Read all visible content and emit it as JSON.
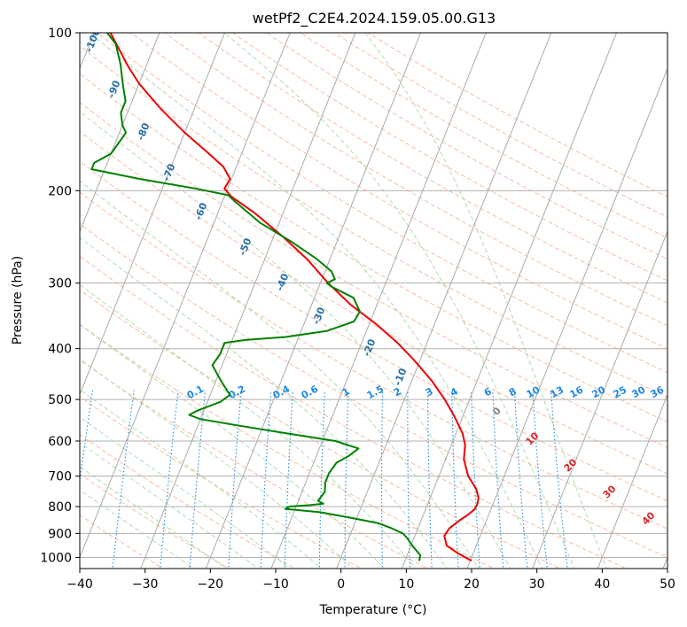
{
  "chart_data": {
    "type": "line",
    "subtype": "skew-t log-p diagram",
    "title": "wetPf2_C2E4.2024.159.05.00.G13",
    "xlabel": "Temperature (°C)",
    "ylabel": "Pressure (hPa)",
    "xlim": [
      -40,
      50
    ],
    "ylim": [
      1050,
      100
    ],
    "y_scale": "log",
    "x_ticks": [
      -40,
      -30,
      -20,
      -10,
      0,
      10,
      20,
      30,
      40,
      50
    ],
    "y_ticks": [
      100,
      200,
      300,
      400,
      500,
      600,
      700,
      800,
      900,
      1000
    ],
    "x_tick_labels": [
      "−40",
      "−30",
      "−20",
      "−10",
      "0",
      "10",
      "20",
      "30",
      "40",
      "50"
    ],
    "grid": true,
    "colors": {
      "temperature": "#ee0000",
      "dewpoint": "#008000",
      "isotherm": "#aaaaaa",
      "dry_adiabat": "#f4a582",
      "moist_adiabat": "#a6d8a6",
      "mixing_ratio": "#1e88e5",
      "dry_adiabat_label": "#d62728",
      "isotherm_label": "#2a6fa8",
      "moist_label": "#808080"
    },
    "series": [
      {
        "key": "temperature",
        "points": [
          [
            1015,
            20.2
          ],
          [
            980,
            17.5
          ],
          [
            950,
            15.5
          ],
          [
            910,
            14.5
          ],
          [
            880,
            14.8
          ],
          [
            850,
            15.9
          ],
          [
            830,
            16.8
          ],
          [
            810,
            17.5
          ],
          [
            790,
            17.6
          ],
          [
            770,
            17.4
          ],
          [
            740,
            16.5
          ],
          [
            700,
            14.5
          ],
          [
            650,
            12.8
          ],
          [
            610,
            12.1
          ],
          [
            580,
            11.0
          ],
          [
            540,
            8.8
          ],
          [
            500,
            6.2
          ],
          [
            460,
            3.0
          ],
          [
            420,
            -1.0
          ],
          [
            390,
            -4.5
          ],
          [
            360,
            -8.8
          ],
          [
            330,
            -14.0
          ],
          [
            300,
            -18.8
          ],
          [
            270,
            -23.5
          ],
          [
            245,
            -28.5
          ],
          [
            220,
            -34.5
          ],
          [
            205,
            -39.0
          ],
          [
            198,
            -40.5
          ],
          [
            190,
            -40.2
          ],
          [
            180,
            -42.0
          ],
          [
            170,
            -45.0
          ],
          [
            155,
            -50.0
          ],
          [
            140,
            -55.0
          ],
          [
            125,
            -60.0
          ],
          [
            115,
            -63.0
          ],
          [
            108,
            -65.0
          ],
          [
            100,
            -67.5
          ]
        ]
      },
      {
        "key": "dewpoint",
        "points": [
          [
            1015,
            12.2
          ],
          [
            990,
            12.0
          ],
          [
            950,
            10.2
          ],
          [
            920,
            9.0
          ],
          [
            900,
            8.0
          ],
          [
            880,
            6.0
          ],
          [
            860,
            3.5
          ],
          [
            840,
            -1.0
          ],
          [
            820,
            -6.0
          ],
          [
            808,
            -11.5
          ],
          [
            800,
            -11.0
          ],
          [
            795,
            -8.0
          ],
          [
            790,
            -6.0
          ],
          [
            780,
            -7.0
          ],
          [
            750,
            -6.5
          ],
          [
            720,
            -7.0
          ],
          [
            690,
            -7.0
          ],
          [
            660,
            -6.5
          ],
          [
            640,
            -5.0
          ],
          [
            620,
            -4.0
          ],
          [
            600,
            -8.0
          ],
          [
            580,
            -16.0
          ],
          [
            560,
            -24.0
          ],
          [
            545,
            -30.0
          ],
          [
            535,
            -32.0
          ],
          [
            525,
            -31.0
          ],
          [
            505,
            -28.0
          ],
          [
            490,
            -27.0
          ],
          [
            470,
            -28.5
          ],
          [
            450,
            -30.0
          ],
          [
            430,
            -31.5
          ],
          [
            410,
            -31.0
          ],
          [
            390,
            -31.0
          ],
          [
            385,
            -28.0
          ],
          [
            380,
            -22.0
          ],
          [
            370,
            -16.0
          ],
          [
            355,
            -12.5
          ],
          [
            340,
            -12.2
          ],
          [
            320,
            -14.0
          ],
          [
            305,
            -18.0
          ],
          [
            300,
            -19.0
          ],
          [
            295,
            -18.0
          ],
          [
            285,
            -19.0
          ],
          [
            270,
            -22.0
          ],
          [
            250,
            -27.0
          ],
          [
            230,
            -33.0
          ],
          [
            210,
            -38.0
          ],
          [
            204,
            -39.5
          ],
          [
            198,
            -45.0
          ],
          [
            190,
            -54.0
          ],
          [
            182,
            -62.0
          ],
          [
            177,
            -62.0
          ],
          [
            170,
            -60.0
          ],
          [
            155,
            -59.0
          ],
          [
            150,
            -60.0
          ],
          [
            142,
            -61.0
          ],
          [
            135,
            -61.0
          ],
          [
            125,
            -62.5
          ],
          [
            115,
            -64.0
          ],
          [
            105,
            -66.0
          ],
          [
            100,
            -68.0
          ]
        ]
      }
    ],
    "isotherm_labels": [
      "-100",
      "-90",
      "-80",
      "-70",
      "-60",
      "-50",
      "-40",
      "-30",
      "-20",
      "-10"
    ],
    "mixing_ratio_labels": [
      "0.1",
      "0.2",
      "0.4",
      "0.6",
      "1",
      "1.5",
      "2",
      "3",
      "4",
      "6",
      "8",
      "10",
      "13",
      "16",
      "20",
      "25",
      "30",
      "36"
    ],
    "dry_adiabat_labels": [
      "10",
      "20",
      "30",
      "40"
    ],
    "moist_adiabat_labels": [
      "0"
    ]
  }
}
